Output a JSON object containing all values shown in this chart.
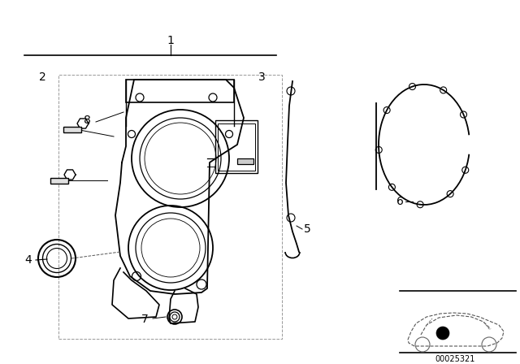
{
  "bg_color": "#ffffff",
  "line_color": "#000000",
  "diagram_code": "00025321",
  "fig_width": 6.4,
  "fig_height": 4.48,
  "dpi": 100
}
